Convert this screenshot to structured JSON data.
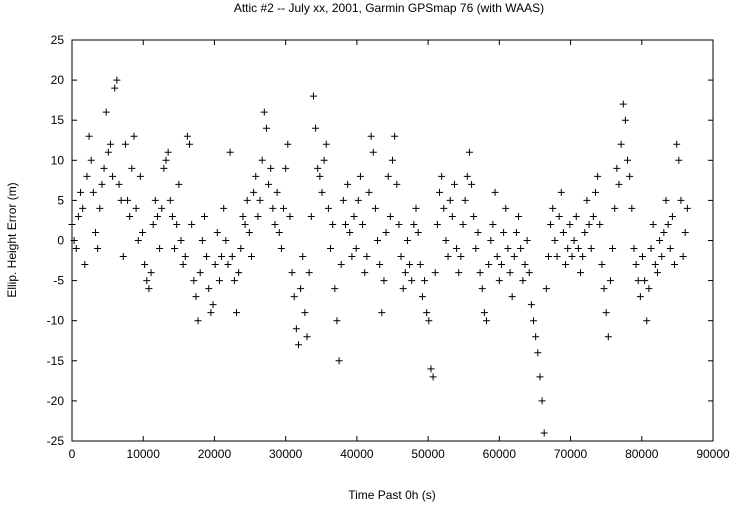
{
  "chart_data": {
    "type": "scatter",
    "title": "Attic #2 -- July xx, 2001, Garmin GPSmap 76 (with WAAS)",
    "xlabel": "Time Past 0h  (s)",
    "ylabel": "Ellip. Height Error  (m)",
    "xlim": [
      0,
      90000
    ],
    "ylim": [
      -25,
      25
    ],
    "xticks": [
      0,
      10000,
      20000,
      30000,
      40000,
      50000,
      60000,
      70000,
      80000,
      90000
    ],
    "yticks": [
      -25,
      -20,
      -15,
      -10,
      -5,
      0,
      5,
      10,
      15,
      20,
      25
    ],
    "grid": false,
    "legend": "none",
    "marker": "plus",
    "series": [
      {
        "points": [
          [
            0,
            2
          ],
          [
            300,
            0
          ],
          [
            600,
            -1
          ],
          [
            900,
            3
          ],
          [
            1200,
            6
          ],
          [
            1500,
            4
          ],
          [
            1800,
            -3
          ],
          [
            2100,
            8
          ],
          [
            2400,
            13
          ],
          [
            2700,
            10
          ],
          [
            3000,
            6
          ],
          [
            3300,
            1
          ],
          [
            3600,
            -1
          ],
          [
            3900,
            4
          ],
          [
            4200,
            7
          ],
          [
            4500,
            9
          ],
          [
            4800,
            16
          ],
          [
            5100,
            11
          ],
          [
            5400,
            12
          ],
          [
            5700,
            8
          ],
          [
            6000,
            19
          ],
          [
            6300,
            20
          ],
          [
            6600,
            7
          ],
          [
            6900,
            5
          ],
          [
            7200,
            -2
          ],
          [
            7500,
            12
          ],
          [
            7800,
            5
          ],
          [
            8100,
            3
          ],
          [
            8400,
            9
          ],
          [
            8700,
            13
          ],
          [
            9000,
            4
          ],
          [
            9300,
            0
          ],
          [
            9600,
            8
          ],
          [
            9900,
            1
          ],
          [
            10200,
            -3
          ],
          [
            10500,
            -5
          ],
          [
            10800,
            -6
          ],
          [
            11100,
            -4
          ],
          [
            11400,
            2
          ],
          [
            11700,
            5
          ],
          [
            12000,
            3
          ],
          [
            12300,
            -1
          ],
          [
            12600,
            4
          ],
          [
            12900,
            9
          ],
          [
            13200,
            10
          ],
          [
            13500,
            11
          ],
          [
            13800,
            5
          ],
          [
            14100,
            3
          ],
          [
            14400,
            -1
          ],
          [
            14700,
            2
          ],
          [
            15000,
            7
          ],
          [
            15300,
            0
          ],
          [
            15600,
            -3
          ],
          [
            15900,
            -2
          ],
          [
            16200,
            13
          ],
          [
            16500,
            12
          ],
          [
            16800,
            2
          ],
          [
            17100,
            -5
          ],
          [
            17400,
            -7
          ],
          [
            17700,
            -10
          ],
          [
            18000,
            -4
          ],
          [
            18300,
            0
          ],
          [
            18600,
            3
          ],
          [
            18900,
            -2
          ],
          [
            19200,
            -6
          ],
          [
            19500,
            -9
          ],
          [
            19800,
            -8
          ],
          [
            20100,
            -3
          ],
          [
            20400,
            1
          ],
          [
            20700,
            -5
          ],
          [
            21000,
            -2
          ],
          [
            21300,
            4
          ],
          [
            21600,
            0
          ],
          [
            21900,
            -3
          ],
          [
            22200,
            11
          ],
          [
            22500,
            -2
          ],
          [
            22800,
            -5
          ],
          [
            23100,
            -9
          ],
          [
            23400,
            -4
          ],
          [
            23700,
            -1
          ],
          [
            24000,
            3
          ],
          [
            24300,
            2
          ],
          [
            24600,
            5
          ],
          [
            24900,
            1
          ],
          [
            25200,
            -2
          ],
          [
            25500,
            6
          ],
          [
            25800,
            8
          ],
          [
            26100,
            3
          ],
          [
            26400,
            5
          ],
          [
            26700,
            10
          ],
          [
            27000,
            16
          ],
          [
            27300,
            14
          ],
          [
            27600,
            7
          ],
          [
            27900,
            9
          ],
          [
            28200,
            4
          ],
          [
            28500,
            2
          ],
          [
            28800,
            6
          ],
          [
            29100,
            1
          ],
          [
            29400,
            -1
          ],
          [
            29700,
            4
          ],
          [
            30000,
            9
          ],
          [
            30300,
            12
          ],
          [
            30600,
            3
          ],
          [
            30900,
            -4
          ],
          [
            31200,
            -7
          ],
          [
            31500,
            -11
          ],
          [
            31800,
            -13
          ],
          [
            32100,
            -6
          ],
          [
            32400,
            -2
          ],
          [
            32700,
            -9
          ],
          [
            33000,
            -12
          ],
          [
            33300,
            -4
          ],
          [
            33600,
            3
          ],
          [
            33900,
            18
          ],
          [
            34200,
            14
          ],
          [
            34500,
            9
          ],
          [
            34800,
            8
          ],
          [
            35100,
            6
          ],
          [
            35400,
            10
          ],
          [
            35700,
            12
          ],
          [
            36000,
            4
          ],
          [
            36300,
            -1
          ],
          [
            36600,
            2
          ],
          [
            36900,
            -6
          ],
          [
            37200,
            -10
          ],
          [
            37500,
            -15
          ],
          [
            37800,
            -3
          ],
          [
            38100,
            5
          ],
          [
            38400,
            2
          ],
          [
            38700,
            7
          ],
          [
            39000,
            1
          ],
          [
            39300,
            -2
          ],
          [
            39600,
            3
          ],
          [
            39900,
            -1
          ],
          [
            40200,
            5
          ],
          [
            40500,
            8
          ],
          [
            40800,
            2
          ],
          [
            41100,
            -4
          ],
          [
            41400,
            -2
          ],
          [
            41700,
            6
          ],
          [
            42000,
            13
          ],
          [
            42300,
            11
          ],
          [
            42600,
            4
          ],
          [
            42900,
            0
          ],
          [
            43200,
            -3
          ],
          [
            43500,
            -9
          ],
          [
            43800,
            -5
          ],
          [
            44100,
            1
          ],
          [
            44400,
            8
          ],
          [
            44700,
            3
          ],
          [
            45000,
            10
          ],
          [
            45300,
            13
          ],
          [
            45600,
            7
          ],
          [
            45900,
            2
          ],
          [
            46200,
            -2
          ],
          [
            46500,
            -6
          ],
          [
            46800,
            -4
          ],
          [
            47100,
            0
          ],
          [
            47400,
            -3
          ],
          [
            47700,
            -5
          ],
          [
            48000,
            2
          ],
          [
            48300,
            4
          ],
          [
            48600,
            1
          ],
          [
            48900,
            -3
          ],
          [
            49200,
            -7
          ],
          [
            49500,
            -5
          ],
          [
            49800,
            -9
          ],
          [
            50100,
            -10
          ],
          [
            50400,
            -16
          ],
          [
            50700,
            -17
          ],
          [
            51000,
            -4
          ],
          [
            51300,
            2
          ],
          [
            51600,
            6
          ],
          [
            51900,
            8
          ],
          [
            52200,
            4
          ],
          [
            52500,
            0
          ],
          [
            52800,
            -2
          ],
          [
            53100,
            5
          ],
          [
            53400,
            3
          ],
          [
            53700,
            7
          ],
          [
            54000,
            -1
          ],
          [
            54300,
            -4
          ],
          [
            54600,
            -2
          ],
          [
            54900,
            2
          ],
          [
            55200,
            5
          ],
          [
            55500,
            8
          ],
          [
            55800,
            11
          ],
          [
            56100,
            7
          ],
          [
            56400,
            3
          ],
          [
            56700,
            -1
          ],
          [
            57000,
            1
          ],
          [
            57300,
            -4
          ],
          [
            57600,
            -6
          ],
          [
            57900,
            -9
          ],
          [
            58200,
            -10
          ],
          [
            58500,
            -3
          ],
          [
            58800,
            0
          ],
          [
            59100,
            2
          ],
          [
            59400,
            6
          ],
          [
            59700,
            -2
          ],
          [
            60000,
            -5
          ],
          [
            60300,
            -3
          ],
          [
            60600,
            1
          ],
          [
            60900,
            4
          ],
          [
            61200,
            -1
          ],
          [
            61500,
            -4
          ],
          [
            61800,
            -7
          ],
          [
            62100,
            -2
          ],
          [
            62400,
            1
          ],
          [
            62700,
            3
          ],
          [
            63000,
            -1
          ],
          [
            63300,
            -5
          ],
          [
            63600,
            -3
          ],
          [
            63900,
            0
          ],
          [
            64200,
            -4
          ],
          [
            64500,
            -8
          ],
          [
            64800,
            -10
          ],
          [
            65100,
            -12
          ],
          [
            65400,
            -14
          ],
          [
            65700,
            -17
          ],
          [
            66000,
            -20
          ],
          [
            66300,
            -24
          ],
          [
            66600,
            -6
          ],
          [
            66900,
            -2
          ],
          [
            67200,
            2
          ],
          [
            67500,
            4
          ],
          [
            67800,
            0
          ],
          [
            68100,
            -2
          ],
          [
            68400,
            3
          ],
          [
            68700,
            6
          ],
          [
            69000,
            1
          ],
          [
            69300,
            -3
          ],
          [
            69600,
            -1
          ],
          [
            69900,
            2
          ],
          [
            70200,
            -2
          ],
          [
            70500,
            0
          ],
          [
            70800,
            3
          ],
          [
            71100,
            -1
          ],
          [
            71400,
            -4
          ],
          [
            71700,
            -2
          ],
          [
            72000,
            1
          ],
          [
            72300,
            5
          ],
          [
            72600,
            2
          ],
          [
            72900,
            -1
          ],
          [
            73200,
            3
          ],
          [
            73500,
            6
          ],
          [
            73800,
            8
          ],
          [
            74100,
            2
          ],
          [
            74400,
            -3
          ],
          [
            74700,
            -6
          ],
          [
            75000,
            -9
          ],
          [
            75300,
            -12
          ],
          [
            75600,
            -5
          ],
          [
            75900,
            -1
          ],
          [
            76200,
            4
          ],
          [
            76500,
            9
          ],
          [
            76800,
            7
          ],
          [
            77100,
            12
          ],
          [
            77400,
            17
          ],
          [
            77700,
            15
          ],
          [
            78000,
            10
          ],
          [
            78300,
            8
          ],
          [
            78600,
            4
          ],
          [
            78900,
            -1
          ],
          [
            79200,
            -3
          ],
          [
            79500,
            -5
          ],
          [
            79800,
            -7
          ],
          [
            80100,
            -2
          ],
          [
            80400,
            -5
          ],
          [
            80700,
            -10
          ],
          [
            81000,
            -6
          ],
          [
            81300,
            -1
          ],
          [
            81600,
            2
          ],
          [
            81900,
            -3
          ],
          [
            82200,
            -4
          ],
          [
            82500,
            0
          ],
          [
            82800,
            -2
          ],
          [
            83100,
            1
          ],
          [
            83400,
            5
          ],
          [
            83700,
            2
          ],
          [
            84000,
            -1
          ],
          [
            84300,
            3
          ],
          [
            84600,
            -3
          ],
          [
            84900,
            12
          ],
          [
            85200,
            10
          ],
          [
            85500,
            5
          ],
          [
            85800,
            -2
          ],
          [
            86100,
            1
          ],
          [
            86400,
            4
          ]
        ]
      }
    ]
  }
}
